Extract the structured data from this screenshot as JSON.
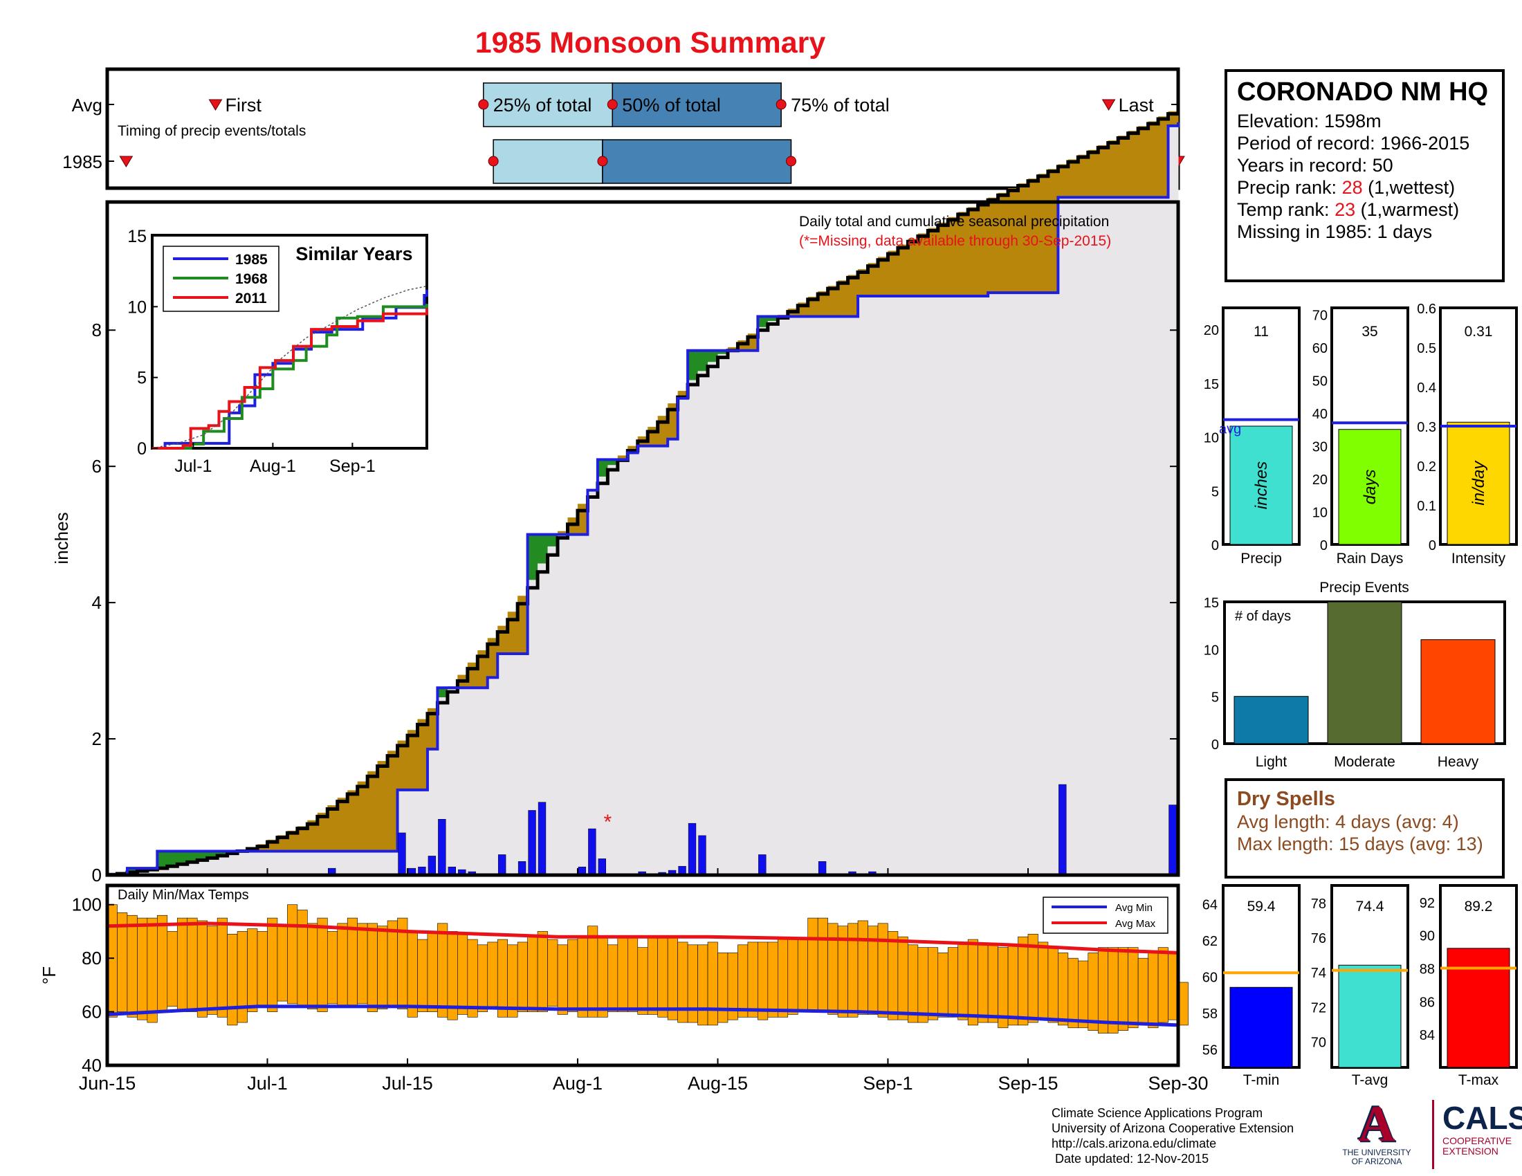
{
  "title": "1985 Monsoon Summary",
  "timing": {
    "rows": [
      "Avg",
      "1985"
    ],
    "subtitle": "Timing of precip events/totals",
    "labels": {
      "first": "First",
      "p25": "25% of total",
      "p50": "50% of total",
      "p75": "75% of total",
      "last": "Last"
    },
    "avg_days": {
      "first": 10,
      "p25": 37,
      "p50": 50,
      "p75": 67,
      "last": 100
    },
    "year_days": {
      "first": 1,
      "p25": 38,
      "p50": 49,
      "p75": 68,
      "last": 107
    }
  },
  "station": {
    "name": "CORONADO NM HQ",
    "elevation": "Elevation: 1598m",
    "period": "Period of record: 1966-2015",
    "years": "Years in record: 50",
    "precip_rank_prefix": "Precip rank: ",
    "precip_rank": "28",
    "precip_rank_suffix": " (1,wettest)",
    "temp_rank_prefix": "Temp rank: ",
    "temp_rank": "23",
    "temp_rank_suffix": " (1,warmest)",
    "missing": "Missing in 1985: 1 days"
  },
  "chart_data": [
    {
      "type": "area",
      "name": "cumulative_precip",
      "ylabel": "inches",
      "ylim": [
        0,
        11.5
      ],
      "yticks": [
        0,
        2,
        4,
        6,
        8
      ],
      "annotation": "Daily total and cumulative seasonal precipitation",
      "annotation_missing": "(*=Missing, data available through 30-Sep-2015)",
      "x_ticks": [
        {
          "day": 0,
          "label": "Jun-15"
        },
        {
          "day": 16,
          "label": "Jul-1"
        },
        {
          "day": 30,
          "label": "Jul-15"
        },
        {
          "day": 47,
          "label": "Aug-1"
        },
        {
          "day": 61,
          "label": "Aug-15"
        },
        {
          "day": 78,
          "label": "Sep-1"
        },
        {
          "day": 92,
          "label": "Sep-15"
        },
        {
          "day": 107,
          "label": "Sep-30"
        }
      ],
      "avg_cumulative": [
        [
          0,
          0
        ],
        [
          5,
          0.1
        ],
        [
          10,
          0.25
        ],
        [
          15,
          0.42
        ],
        [
          20,
          0.75
        ],
        [
          25,
          1.3
        ],
        [
          30,
          2.05
        ],
        [
          35,
          2.85
        ],
        [
          40,
          3.75
        ],
        [
          43,
          4.45
        ],
        [
          45,
          4.95
        ],
        [
          48,
          5.55
        ],
        [
          50,
          5.95
        ],
        [
          55,
          6.65
        ],
        [
          58,
          7.2
        ],
        [
          61,
          7.6
        ],
        [
          65,
          8.0
        ],
        [
          70,
          8.45
        ],
        [
          75,
          8.85
        ],
        [
          80,
          9.3
        ],
        [
          85,
          9.7
        ],
        [
          90,
          10.05
        ],
        [
          95,
          10.4
        ],
        [
          100,
          10.75
        ],
        [
          105,
          11.1
        ],
        [
          107,
          11.25
        ]
      ],
      "year_cumulative": [
        [
          0,
          0
        ],
        [
          2,
          0.1
        ],
        [
          5,
          0.35
        ],
        [
          28,
          0.35
        ],
        [
          29,
          1.25
        ],
        [
          31,
          1.25
        ],
        [
          32,
          1.85
        ],
        [
          33,
          2.75
        ],
        [
          38,
          2.9
        ],
        [
          39,
          3.25
        ],
        [
          41,
          3.25
        ],
        [
          42,
          5.0
        ],
        [
          47,
          5.0
        ],
        [
          48,
          5.65
        ],
        [
          49,
          6.1
        ],
        [
          52,
          6.2
        ],
        [
          53,
          6.3
        ],
        [
          56,
          6.4
        ],
        [
          57,
          7.0
        ],
        [
          58,
          7.7
        ],
        [
          64,
          7.7
        ],
        [
          65,
          8.2
        ],
        [
          75,
          8.5
        ],
        [
          88,
          8.55
        ],
        [
          94,
          8.55
        ],
        [
          95,
          9.95
        ],
        [
          105,
          9.95
        ],
        [
          106,
          11.0
        ],
        [
          107,
          11.05
        ]
      ],
      "daily_precip": [
        [
          0,
          0.03
        ],
        [
          2,
          0.02
        ],
        [
          22,
          0.1
        ],
        [
          29,
          0.62
        ],
        [
          30,
          0.1
        ],
        [
          31,
          0.12
        ],
        [
          32,
          0.28
        ],
        [
          33,
          0.82
        ],
        [
          34,
          0.12
        ],
        [
          35,
          0.08
        ],
        [
          36,
          0.05
        ],
        [
          39,
          0.3
        ],
        [
          41,
          0.2
        ],
        [
          42,
          0.95
        ],
        [
          43,
          1.07
        ],
        [
          47,
          0.12
        ],
        [
          48,
          0.68
        ],
        [
          49,
          0.24
        ],
        [
          53,
          0.05
        ],
        [
          55,
          0.04
        ],
        [
          56,
          0.07
        ],
        [
          57,
          0.13
        ],
        [
          58,
          0.76
        ],
        [
          59,
          0.58
        ],
        [
          65,
          0.3
        ],
        [
          71,
          0.2
        ],
        [
          74,
          0.05
        ],
        [
          76,
          0.05
        ],
        [
          95,
          1.33
        ],
        [
          106,
          1.03
        ]
      ],
      "missing_day": 50
    },
    {
      "type": "line",
      "name": "similar_years",
      "title": "Similar Years",
      "ylim": [
        0,
        15
      ],
      "yticks": [
        0,
        5,
        10,
        15
      ],
      "x_ticks": [
        {
          "day": 16,
          "label": "Jul-1"
        },
        {
          "day": 47,
          "label": "Aug-1"
        },
        {
          "day": 78,
          "label": "Sep-1"
        }
      ],
      "series": [
        {
          "name": "1985",
          "color": "#1f1fe0",
          "points": [
            [
              0,
              0
            ],
            [
              5,
              0.35
            ],
            [
              28,
              0.35
            ],
            [
              30,
              2.5
            ],
            [
              34,
              3.0
            ],
            [
              40,
              5.2
            ],
            [
              47,
              6.0
            ],
            [
              55,
              7.0
            ],
            [
              62,
              8.2
            ],
            [
              70,
              8.4
            ],
            [
              82,
              9.2
            ],
            [
              95,
              9.95
            ],
            [
              106,
              10.8
            ],
            [
              107,
              11.2
            ]
          ]
        },
        {
          "name": "1968",
          "color": "#1e8c1e",
          "points": [
            [
              0,
              0
            ],
            [
              15,
              0.3
            ],
            [
              20,
              1.2
            ],
            [
              28,
              2.1
            ],
            [
              35,
              3.6
            ],
            [
              42,
              4.2
            ],
            [
              47,
              5.6
            ],
            [
              55,
              6.2
            ],
            [
              60,
              7.2
            ],
            [
              68,
              8.0
            ],
            [
              72,
              9.2
            ],
            [
              80,
              9.3
            ],
            [
              90,
              10.0
            ],
            [
              107,
              10.2
            ]
          ]
        },
        {
          "name": "2011",
          "color": "#e8121b",
          "points": [
            [
              0,
              0
            ],
            [
              12,
              0.2
            ],
            [
              15,
              1.4
            ],
            [
              22,
              1.6
            ],
            [
              26,
              2.6
            ],
            [
              30,
              3.3
            ],
            [
              36,
              4.3
            ],
            [
              42,
              5.7
            ],
            [
              48,
              6.2
            ],
            [
              55,
              7.2
            ],
            [
              62,
              8.4
            ],
            [
              70,
              8.6
            ],
            [
              80,
              9.0
            ],
            [
              90,
              9.5
            ],
            [
              107,
              9.9
            ]
          ]
        },
        {
          "name": "avg",
          "color": "#555555",
          "dashed": true,
          "points": [
            [
              0,
              0
            ],
            [
              10,
              0.35
            ],
            [
              20,
              0.95
            ],
            [
              30,
              2.3
            ],
            [
              40,
              4.3
            ],
            [
              50,
              6.3
            ],
            [
              60,
              7.8
            ],
            [
              70,
              8.8
            ],
            [
              80,
              9.8
            ],
            [
              90,
              10.6
            ],
            [
              100,
              11.2
            ],
            [
              107,
              11.45
            ]
          ]
        }
      ]
    },
    {
      "type": "bar",
      "name": "seasonal_totals",
      "panels": [
        {
          "label": "Precip",
          "unit": "inches",
          "value": 11,
          "value_text": "11",
          "avg": 11.6,
          "avg_label": "avg",
          "ylim": [
            0,
            22
          ],
          "yticks": [
            0,
            5,
            10,
            15,
            20
          ],
          "color": "#40e0d0"
        },
        {
          "label": "Rain Days",
          "unit": "days",
          "value": 35,
          "value_text": "35",
          "avg": 37,
          "ylim": [
            0,
            72
          ],
          "yticks": [
            0,
            10,
            20,
            30,
            40,
            50,
            60,
            70
          ],
          "color": "#7fff00"
        },
        {
          "label": "Intensity",
          "unit": "in/day",
          "value": 0.31,
          "value_text": "0.31",
          "avg": 0.3,
          "ylim": [
            0,
            0.6
          ],
          "yticks": [
            0,
            0.1,
            0.2,
            0.3,
            0.4,
            0.5,
            0.6
          ],
          "color": "#ffd700"
        }
      ]
    },
    {
      "type": "bar",
      "name": "precip_events",
      "title": "Precip Events",
      "ylabel": "# of days",
      "ylim": [
        0,
        15
      ],
      "yticks": [
        0,
        5,
        10,
        15
      ],
      "categories": [
        "Light",
        "Moderate",
        "Heavy"
      ],
      "values": [
        5,
        15,
        11
      ],
      "colors": [
        "#0e7aa6",
        "#556b2f",
        "#ff4500"
      ]
    },
    {
      "type": "bar",
      "name": "daily_temps",
      "title": "Daily Min/Max Temps",
      "ylabel": "°F",
      "ylim": [
        40,
        103
      ],
      "yticks": [
        40,
        60,
        80,
        100
      ],
      "legend": [
        "Avg Min",
        "Avg Max"
      ],
      "avg_min": [
        [
          0,
          59
        ],
        [
          15,
          62
        ],
        [
          20,
          62
        ],
        [
          30,
          62
        ],
        [
          45,
          61
        ],
        [
          60,
          61
        ],
        [
          75,
          60
        ],
        [
          90,
          58
        ],
        [
          100,
          56
        ],
        [
          107,
          55
        ]
      ],
      "avg_max": [
        [
          0,
          92
        ],
        [
          10,
          93
        ],
        [
          20,
          92
        ],
        [
          30,
          90
        ],
        [
          45,
          88
        ],
        [
          60,
          88
        ],
        [
          75,
          87
        ],
        [
          90,
          85
        ],
        [
          100,
          83
        ],
        [
          107,
          82
        ]
      ],
      "tmin": [
        58,
        60,
        58,
        57,
        56,
        60,
        62,
        60,
        60,
        58,
        59,
        58,
        55,
        56,
        60,
        62,
        60,
        64,
        63,
        62,
        61,
        60,
        63,
        62,
        62,
        63,
        60,
        61,
        62,
        61,
        58,
        60,
        60,
        58,
        57,
        59,
        58,
        60,
        62,
        58,
        58,
        60,
        60,
        60,
        62,
        59,
        60,
        58,
        58,
        58,
        60,
        60,
        60,
        59,
        59,
        58,
        57,
        56,
        56,
        55,
        55,
        56,
        57,
        58,
        58,
        57,
        58,
        58,
        59,
        60,
        60,
        60,
        59,
        58,
        58,
        59,
        59,
        58,
        57,
        57,
        56,
        56,
        57,
        58,
        58,
        57,
        55,
        56,
        56,
        54,
        55,
        55,
        56,
        57,
        56,
        55,
        54,
        54,
        53,
        52,
        52,
        53,
        54,
        55,
        54,
        56,
        57,
        55
      ],
      "tmax": [
        100,
        97,
        96,
        95,
        95,
        96,
        90,
        95,
        95,
        94,
        92,
        95,
        89,
        90,
        91,
        90,
        95,
        92,
        100,
        98,
        93,
        95,
        90,
        93,
        95,
        93,
        93,
        92,
        94,
        95,
        90,
        87,
        90,
        93,
        90,
        89,
        87,
        85,
        86,
        87,
        85,
        86,
        88,
        90,
        87,
        85,
        87,
        88,
        92,
        88,
        85,
        88,
        88,
        84,
        88,
        88,
        88,
        86,
        85,
        85,
        86,
        82,
        82,
        85,
        86,
        86,
        86,
        87,
        87,
        87,
        95,
        95,
        93,
        92,
        93,
        94,
        92,
        93,
        90,
        88,
        85,
        84,
        84,
        82,
        84,
        86,
        87,
        85,
        85,
        84,
        85,
        88,
        89,
        86,
        84,
        82,
        80,
        79,
        82,
        84,
        84,
        84,
        84,
        80,
        82,
        84,
        82,
        71
      ]
    },
    {
      "type": "bar",
      "name": "seasonal_temps",
      "panels": [
        {
          "label": "T-min",
          "value": 59.4,
          "value_text": "59.4",
          "avg": 60.2,
          "ylim": [
            55,
            65
          ],
          "yticks": [
            56,
            58,
            60,
            62,
            64
          ],
          "color": "#0000ff"
        },
        {
          "label": "T-avg",
          "value": 74.4,
          "value_text": "74.4",
          "avg": 74.1,
          "ylim": [
            68.5,
            79
          ],
          "yticks": [
            70,
            72,
            74,
            76,
            78
          ],
          "color": "#40e0d0"
        },
        {
          "label": "T-max",
          "value": 89.2,
          "value_text": "89.2",
          "avg": 88.0,
          "ylim": [
            82,
            93
          ],
          "yticks": [
            84,
            86,
            88,
            90,
            92
          ],
          "color": "#ff0000"
        }
      ]
    }
  ],
  "dry_spells": {
    "title": "Dry Spells",
    "avg_length": "Avg length: 4 days (avg: 4)",
    "max_length": "Max length: 15 days (avg: 13)"
  },
  "footer": {
    "line1": "Climate Science Applications Program",
    "line2": "University of Arizona Cooperative Extension",
    "line3": "http://cals.arizona.edu/climate",
    "line4": " Date updated: 12-Nov-2015"
  },
  "logos": {
    "ua_mark": "A",
    "ua_line1": "THE UNIVERSITY",
    "ua_line2": "OF ARIZONA",
    "cals_big": "CALS",
    "cals_small1": "COOPERATIVE",
    "cals_small2": "EXTENSION"
  },
  "colors": {
    "accent": "#e8121b",
    "above_avg": "#b8860b",
    "below_avg": "#228b22",
    "cum_fill": "#e8e6e9",
    "bar_light": "#add8e6",
    "bar_dark": "#4682b4",
    "temp_bar": "#ffa500"
  }
}
